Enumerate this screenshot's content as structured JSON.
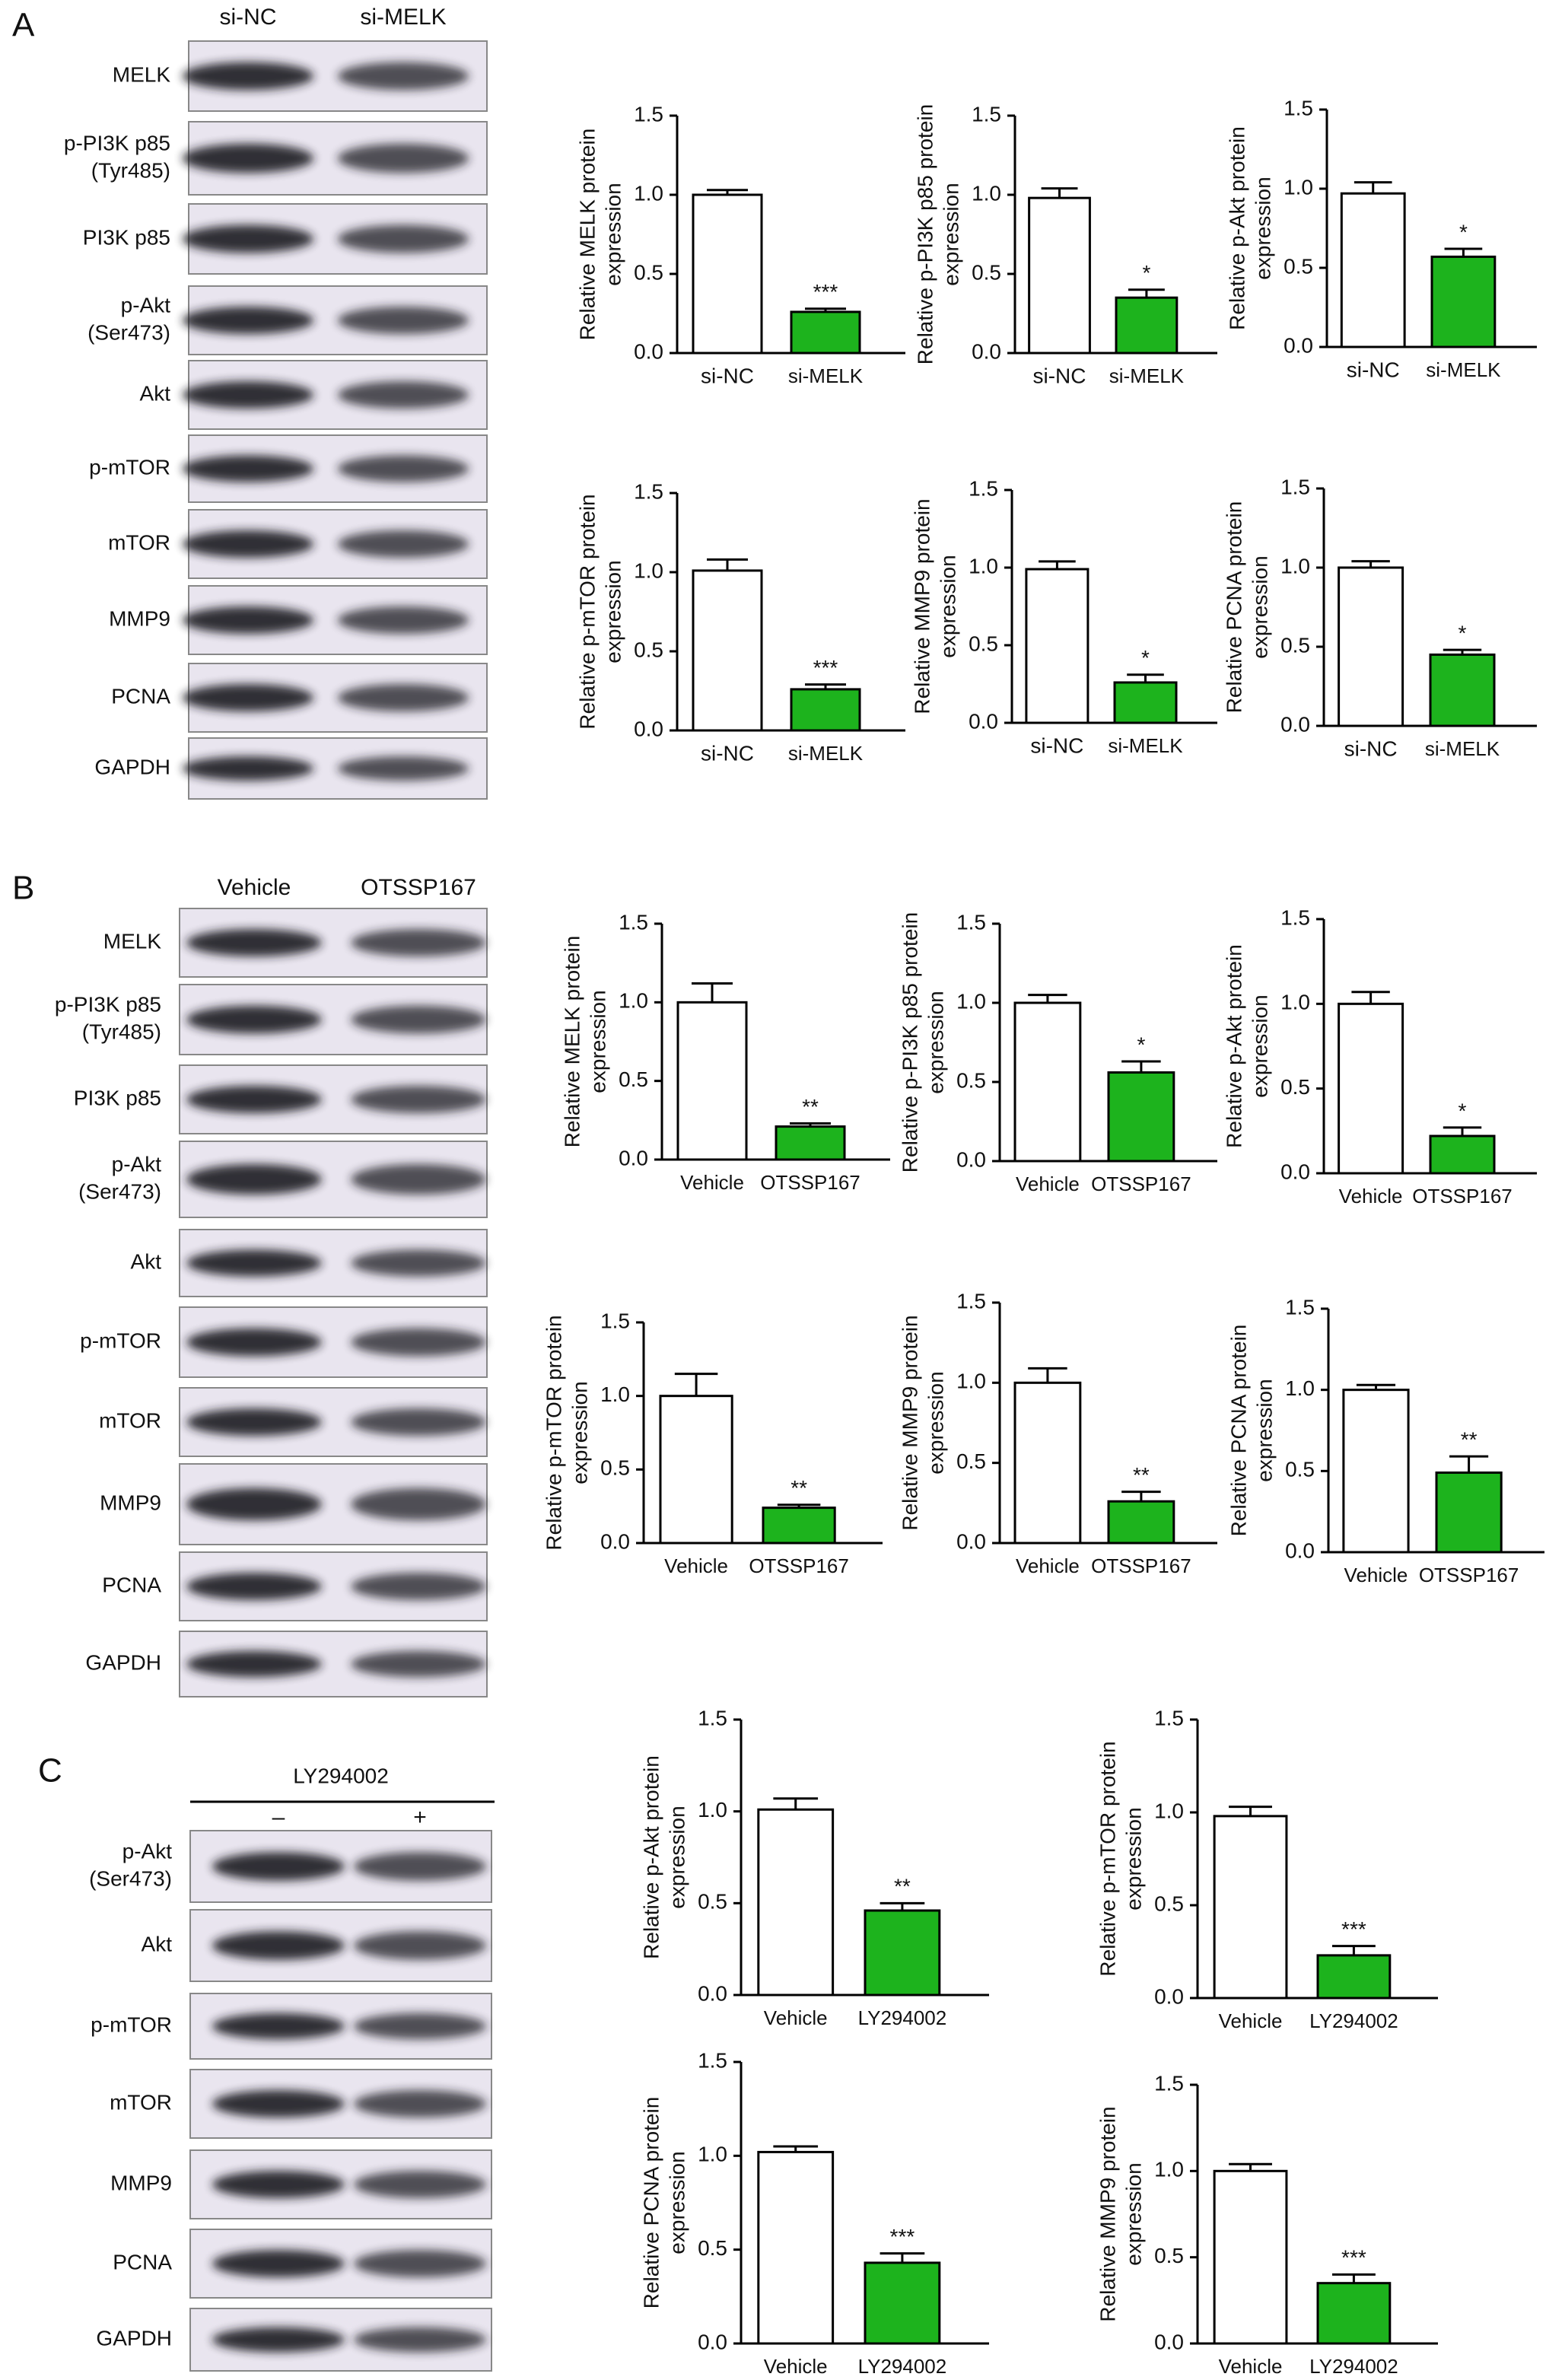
{
  "figure": {
    "panels": [
      {
        "label": "A",
        "lanes": [
          "si-NC",
          "si-MELK"
        ],
        "blots": [
          [
            "MELK"
          ],
          [
            "p-PI3K p85",
            "(Tyr485)"
          ],
          [
            "PI3K p85"
          ],
          [
            "p-Akt",
            "(Ser473)"
          ],
          [
            "Akt"
          ],
          [
            "p-mTOR"
          ],
          [
            "mTOR"
          ],
          [
            "MMP9"
          ],
          [
            "PCNA"
          ],
          [
            "GAPDH"
          ]
        ]
      },
      {
        "label": "B",
        "lanes": [
          "Vehicle",
          "OTSSP167"
        ],
        "blots": [
          [
            "MELK"
          ],
          [
            "p-PI3K p85",
            "(Tyr485)"
          ],
          [
            "PI3K p85"
          ],
          [
            "p-Akt",
            "(Ser473)"
          ],
          [
            "Akt"
          ],
          [
            "p-mTOR"
          ],
          [
            "mTOR"
          ],
          [
            "MMP9"
          ],
          [
            "PCNA"
          ],
          [
            "GAPDH"
          ]
        ]
      },
      {
        "label": "C",
        "treatment": "LY294002",
        "lanes": [
          "–",
          "+"
        ],
        "blots": [
          [
            "p-Akt",
            "(Ser473)"
          ],
          [
            "Akt"
          ],
          [
            "p-mTOR"
          ],
          [
            "mTOR"
          ],
          [
            "MMP9"
          ],
          [
            "PCNA"
          ],
          [
            "GAPDH"
          ]
        ]
      }
    ]
  },
  "chart_data": [
    {
      "type": "bar",
      "ylabel": [
        "Relative MELK protein",
        "expression"
      ],
      "categories": [
        "si-NC",
        "si-MELK"
      ],
      "values": [
        1.0,
        0.26
      ],
      "errors": [
        0.03,
        0.02
      ],
      "significance": "***",
      "colors": [
        "#ffffff",
        "#1db31d"
      ],
      "ylim": [
        0,
        1.5
      ],
      "yticks": [
        {
          "value": 0,
          "label": "0.0"
        },
        0.5,
        {
          "value": 1,
          "label": "1.0"
        },
        1.5
      ]
    },
    {
      "type": "bar",
      "ylabel": [
        "Relative p-PI3K p85 protein",
        "expression"
      ],
      "categories": [
        "si-NC",
        "si-MELK"
      ],
      "values": [
        0.98,
        0.35
      ],
      "errors": [
        0.06,
        0.05
      ],
      "significance": "*",
      "colors": [
        "#ffffff",
        "#1db31d"
      ],
      "ylim": [
        0,
        1.5
      ],
      "yticks": [
        {
          "value": 0,
          "label": "0.0"
        },
        0.5,
        {
          "value": 1,
          "label": "1.0"
        },
        1.5
      ]
    },
    {
      "type": "bar",
      "ylabel": [
        "Relative p-Akt protein",
        "expression"
      ],
      "categories": [
        "si-NC",
        "si-MELK"
      ],
      "values": [
        0.97,
        0.57
      ],
      "errors": [
        0.07,
        0.05
      ],
      "significance": "*",
      "colors": [
        "#ffffff",
        "#1db31d"
      ],
      "ylim": [
        0,
        1.5
      ],
      "yticks": [
        {
          "value": 0,
          "label": "0.0"
        },
        0.5,
        {
          "value": 1,
          "label": "1.0"
        },
        1.5
      ]
    },
    {
      "type": "bar",
      "ylabel": [
        "Relative p-mTOR protein",
        "expression"
      ],
      "categories": [
        "si-NC",
        "si-MELK"
      ],
      "values": [
        1.01,
        0.26
      ],
      "errors": [
        0.07,
        0.03
      ],
      "significance": "***",
      "colors": [
        "#ffffff",
        "#1db31d"
      ],
      "ylim": [
        0,
        1.5
      ],
      "yticks": [
        {
          "value": 0,
          "label": "0.0"
        },
        0.5,
        {
          "value": 1,
          "label": "1.0"
        },
        1.5
      ]
    },
    {
      "type": "bar",
      "ylabel": [
        "Relative MMP9 protein",
        "expression"
      ],
      "categories": [
        "si-NC",
        "si-MELK"
      ],
      "values": [
        0.99,
        0.26
      ],
      "errors": [
        0.05,
        0.05
      ],
      "significance": "*",
      "colors": [
        "#ffffff",
        "#1db31d"
      ],
      "ylim": [
        0,
        1.5
      ],
      "yticks": [
        {
          "value": 0,
          "label": "0.0"
        },
        0.5,
        {
          "value": 1,
          "label": "1.0"
        },
        1.5
      ]
    },
    {
      "type": "bar",
      "ylabel": [
        "Relative PCNA protein",
        "expression"
      ],
      "categories": [
        "si-NC",
        "si-MELK"
      ],
      "values": [
        1.0,
        0.45
      ],
      "errors": [
        0.04,
        0.03
      ],
      "significance": "*",
      "colors": [
        "#ffffff",
        "#1db31d"
      ],
      "ylim": [
        0,
        1.5
      ],
      "yticks": [
        {
          "value": 0,
          "label": "0.0"
        },
        0.5,
        {
          "value": 1,
          "label": "1.0"
        },
        1.5
      ]
    },
    {
      "type": "bar",
      "ylabel": [
        "Relative MELK protein",
        "expression"
      ],
      "categories": [
        "Vehicle",
        "OTSSP167"
      ],
      "values": [
        1.0,
        0.21
      ],
      "errors": [
        0.12,
        0.02
      ],
      "significance": "**",
      "colors": [
        "#ffffff",
        "#1db31d"
      ],
      "ylim": [
        0,
        1.5
      ],
      "yticks": [
        {
          "value": 0,
          "label": "0.0"
        },
        0.5,
        {
          "value": 1,
          "label": "1.0"
        },
        1.5
      ]
    },
    {
      "type": "bar",
      "ylabel": [
        "Relative p-PI3K p85 protein",
        "expression"
      ],
      "categories": [
        "Vehicle",
        "OTSSP167"
      ],
      "values": [
        1.0,
        0.56
      ],
      "errors": [
        0.05,
        0.07
      ],
      "significance": "*",
      "colors": [
        "#ffffff",
        "#1db31d"
      ],
      "ylim": [
        0,
        1.5
      ],
      "yticks": [
        {
          "value": 0,
          "label": "0.0"
        },
        0.5,
        {
          "value": 1,
          "label": "1.0"
        },
        1.5
      ]
    },
    {
      "type": "bar",
      "ylabel": [
        "Relative p-Akt protein",
        "expression"
      ],
      "categories": [
        "Vehicle",
        "OTSSP167"
      ],
      "values": [
        1.0,
        0.22
      ],
      "errors": [
        0.07,
        0.05
      ],
      "significance": "*",
      "colors": [
        "#ffffff",
        "#1db31d"
      ],
      "ylim": [
        0,
        1.5
      ],
      "yticks": [
        {
          "value": 0,
          "label": "0.0"
        },
        0.5,
        {
          "value": 1,
          "label": "1.0"
        },
        1.5
      ]
    },
    {
      "type": "bar",
      "ylabel": [
        "Relative p-mTOR protein",
        "expression"
      ],
      "categories": [
        "Vehicle",
        "OTSSP167"
      ],
      "values": [
        1.0,
        0.24
      ],
      "errors": [
        0.15,
        0.02
      ],
      "significance": "**",
      "colors": [
        "#ffffff",
        "#1db31d"
      ],
      "ylim": [
        0,
        1.5
      ],
      "yticks": [
        {
          "value": 0,
          "label": "0.0"
        },
        0.5,
        {
          "value": 1,
          "label": "1.0"
        },
        1.5
      ]
    },
    {
      "type": "bar",
      "ylabel": [
        "Relative MMP9 protein",
        "expression"
      ],
      "categories": [
        "Vehicle",
        "OTSSP167"
      ],
      "values": [
        1.0,
        0.26
      ],
      "errors": [
        0.09,
        0.06
      ],
      "significance": "**",
      "colors": [
        "#ffffff",
        "#1db31d"
      ],
      "ylim": [
        0,
        1.5
      ],
      "yticks": [
        {
          "value": 0,
          "label": "0.0"
        },
        0.5,
        {
          "value": 1,
          "label": "1.0"
        },
        1.5
      ]
    },
    {
      "type": "bar",
      "ylabel": [
        "Relative PCNA protein",
        "expression"
      ],
      "categories": [
        "Vehicle",
        "OTSSP167"
      ],
      "values": [
        1.0,
        0.49
      ],
      "errors": [
        0.03,
        0.1
      ],
      "significance": "**",
      "colors": [
        "#ffffff",
        "#1db31d"
      ],
      "ylim": [
        0,
        1.5
      ],
      "yticks": [
        {
          "value": 0,
          "label": "0.0"
        },
        0.5,
        {
          "value": 1,
          "label": "1.0"
        },
        1.5
      ]
    },
    {
      "type": "bar",
      "ylabel": [
        "Relative p-Akt protein",
        "expression"
      ],
      "categories": [
        "Vehicle",
        "LY294002"
      ],
      "values": [
        1.01,
        0.46
      ],
      "errors": [
        0.06,
        0.04
      ],
      "significance": "**",
      "colors": [
        "#ffffff",
        "#1db31d"
      ],
      "ylim": [
        0,
        1.5
      ],
      "yticks": [
        {
          "value": 0,
          "label": "0.0"
        },
        0.5,
        {
          "value": 1,
          "label": "1.0"
        },
        1.5
      ]
    },
    {
      "type": "bar",
      "ylabel": [
        "Relative p-mTOR protein",
        "expression"
      ],
      "categories": [
        "Vehicle",
        "LY294002"
      ],
      "values": [
        0.98,
        0.23
      ],
      "errors": [
        0.05,
        0.05
      ],
      "significance": "***",
      "colors": [
        "#ffffff",
        "#1db31d"
      ],
      "ylim": [
        0,
        1.5
      ],
      "yticks": [
        {
          "value": 0,
          "label": "0.0"
        },
        0.5,
        {
          "value": 1,
          "label": "1.0"
        },
        1.5
      ]
    },
    {
      "type": "bar",
      "ylabel": [
        "Relative PCNA protein",
        "expression"
      ],
      "categories": [
        "Vehicle",
        "LY294002"
      ],
      "values": [
        1.02,
        0.43
      ],
      "errors": [
        0.03,
        0.05
      ],
      "significance": "***",
      "colors": [
        "#ffffff",
        "#1db31d"
      ],
      "ylim": [
        0,
        1.5
      ],
      "yticks": [
        {
          "value": 0,
          "label": "0.0"
        },
        0.5,
        {
          "value": 1,
          "label": "1.0"
        },
        1.5
      ]
    },
    {
      "type": "bar",
      "ylabel": [
        "Relative MMP9 protein",
        "expression"
      ],
      "categories": [
        "Vehicle",
        "LY294002"
      ],
      "values": [
        1.0,
        0.35
      ],
      "errors": [
        0.04,
        0.05
      ],
      "significance": "***",
      "colors": [
        "#ffffff",
        "#1db31d"
      ],
      "ylim": [
        0,
        1.5
      ],
      "yticks": [
        {
          "value": 0,
          "label": "0.0"
        },
        0.5,
        {
          "value": 1,
          "label": "1.0"
        },
        1.5
      ]
    }
  ]
}
